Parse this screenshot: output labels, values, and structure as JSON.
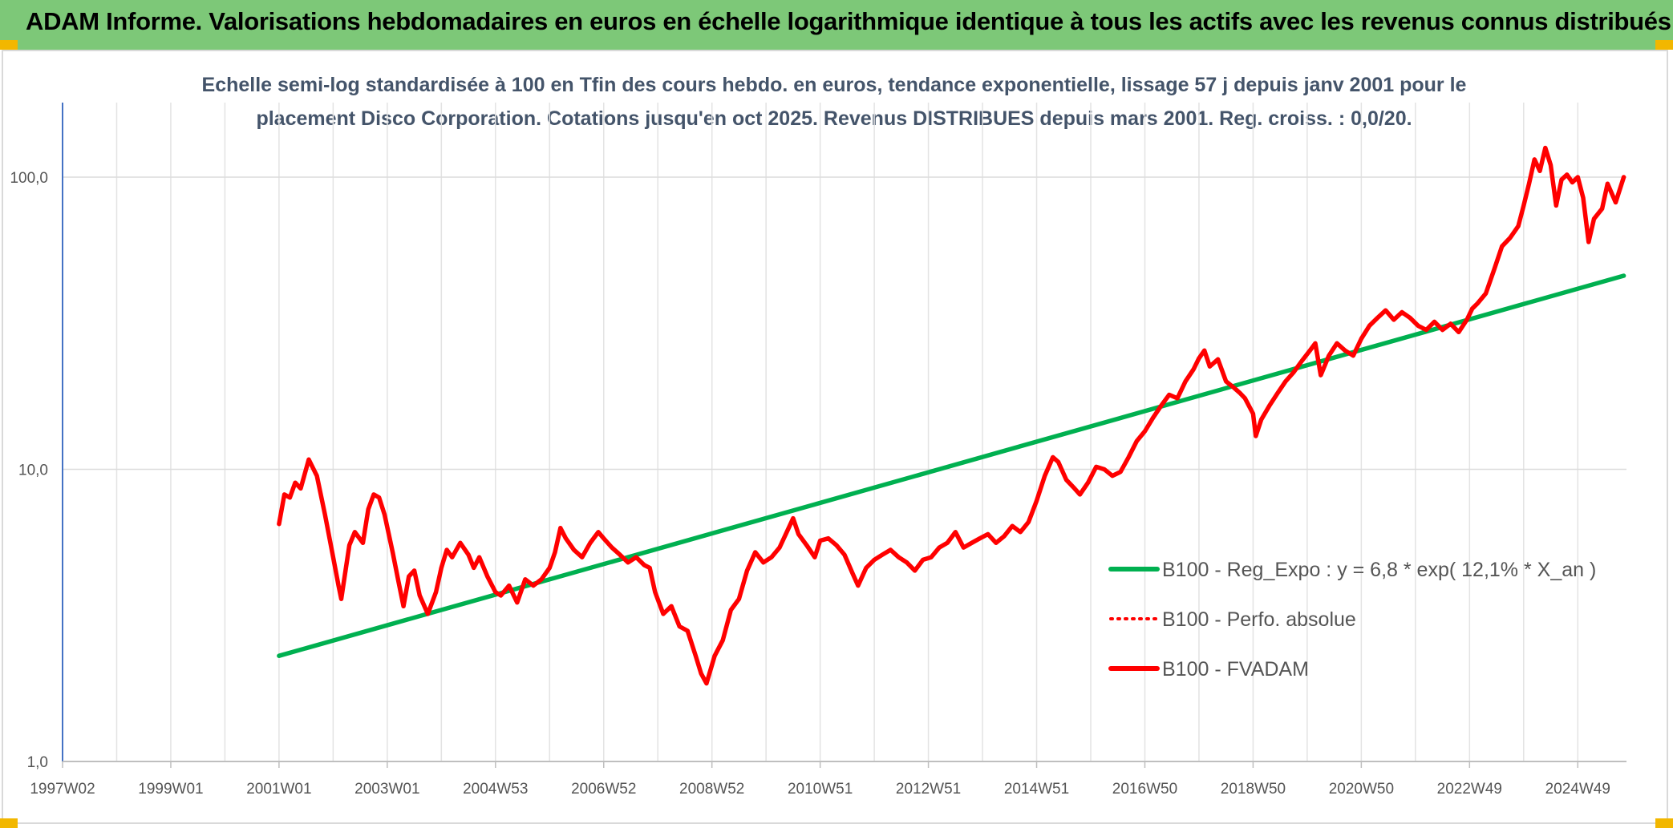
{
  "header": {
    "title": "ADAM Informe. Valorisations hebdomadaires en euros en échelle logarithmique identique à tous les actifs avec les revenus connus distribués"
  },
  "chart_data": {
    "type": "line",
    "subtitle_line1": "Echelle semi-log standardisée à 100 en Tfin des cours hebdo. en euros, tendance exponentielle, lissage 57 j depuis janv 2001 pour le",
    "subtitle_line2": "placement Disco Corporation. Cotations jusqu'en oct 2025. Revenus DISTRIBUES depuis mars 2001. Reg. croiss. : 0,0/20.",
    "y_scale": "log",
    "ylim": [
      1,
      180
    ],
    "y_ticks": [
      {
        "value": 1,
        "label": "1,0"
      },
      {
        "value": 10,
        "label": "10,0"
      },
      {
        "value": 100,
        "label": "100,0"
      }
    ],
    "xlim": [
      1997.0,
      2025.9
    ],
    "x_ticks": [
      {
        "value": 1997.0,
        "label": "1997W02"
      },
      {
        "value": 1999.0,
        "label": "1999W01"
      },
      {
        "value": 2001.0,
        "label": "2001W01"
      },
      {
        "value": 2003.0,
        "label": "2003W01"
      },
      {
        "value": 2005.0,
        "label": "2004W53"
      },
      {
        "value": 2007.0,
        "label": "2006W52"
      },
      {
        "value": 2009.0,
        "label": "2008W52"
      },
      {
        "value": 2011.0,
        "label": "2010W51"
      },
      {
        "value": 2013.0,
        "label": "2012W51"
      },
      {
        "value": 2015.0,
        "label": "2014W51"
      },
      {
        "value": 2017.0,
        "label": "2016W50"
      },
      {
        "value": 2019.0,
        "label": "2018W50"
      },
      {
        "value": 2021.0,
        "label": "2020W50"
      },
      {
        "value": 2023.0,
        "label": "2022W49"
      },
      {
        "value": 2025.0,
        "label": "2024W49"
      }
    ],
    "grid": "vertical and horizontal",
    "legend_position": "right",
    "series": [
      {
        "name": "B100 - Reg_Expo : y = 6,8 * exp( 12,1% *  X_an )",
        "color": "#00b050",
        "style": "solid",
        "points": [
          [
            2001.0,
            2.3
          ],
          [
            2025.85,
            46.0
          ]
        ]
      },
      {
        "name": "B100 - Perfo. absolue",
        "color": "#ff0000",
        "style": "dotted",
        "points": []
      },
      {
        "name": "B100 - FVADAM",
        "color": "#ff0000",
        "style": "solid",
        "points": [
          [
            2001.0,
            6.5
          ],
          [
            2001.1,
            8.2
          ],
          [
            2001.2,
            8.0
          ],
          [
            2001.3,
            9.0
          ],
          [
            2001.4,
            8.6
          ],
          [
            2001.55,
            10.8
          ],
          [
            2001.7,
            9.5
          ],
          [
            2001.85,
            7.0
          ],
          [
            2002.0,
            5.0
          ],
          [
            2002.1,
            4.0
          ],
          [
            2002.15,
            3.6
          ],
          [
            2002.3,
            5.5
          ],
          [
            2002.4,
            6.1
          ],
          [
            2002.55,
            5.6
          ],
          [
            2002.65,
            7.3
          ],
          [
            2002.75,
            8.2
          ],
          [
            2002.85,
            8.0
          ],
          [
            2002.95,
            7.0
          ],
          [
            2003.1,
            5.2
          ],
          [
            2003.2,
            4.2
          ],
          [
            2003.3,
            3.4
          ],
          [
            2003.4,
            4.3
          ],
          [
            2003.5,
            4.5
          ],
          [
            2003.6,
            3.7
          ],
          [
            2003.75,
            3.2
          ],
          [
            2003.9,
            3.8
          ],
          [
            2004.0,
            4.6
          ],
          [
            2004.1,
            5.3
          ],
          [
            2004.2,
            5.0
          ],
          [
            2004.35,
            5.6
          ],
          [
            2004.5,
            5.1
          ],
          [
            2004.6,
            4.6
          ],
          [
            2004.7,
            5.0
          ],
          [
            2004.85,
            4.3
          ],
          [
            2005.0,
            3.8
          ],
          [
            2005.1,
            3.7
          ],
          [
            2005.25,
            4.0
          ],
          [
            2005.4,
            3.5
          ],
          [
            2005.55,
            4.2
          ],
          [
            2005.7,
            4.0
          ],
          [
            2005.85,
            4.2
          ],
          [
            2006.0,
            4.6
          ],
          [
            2006.1,
            5.2
          ],
          [
            2006.2,
            6.3
          ],
          [
            2006.3,
            5.8
          ],
          [
            2006.45,
            5.3
          ],
          [
            2006.6,
            5.0
          ],
          [
            2006.75,
            5.6
          ],
          [
            2006.9,
            6.1
          ],
          [
            2007.0,
            5.8
          ],
          [
            2007.15,
            5.4
          ],
          [
            2007.3,
            5.1
          ],
          [
            2007.45,
            4.8
          ],
          [
            2007.6,
            5.0
          ],
          [
            2007.75,
            4.7
          ],
          [
            2007.85,
            4.6
          ],
          [
            2007.95,
            3.8
          ],
          [
            2008.1,
            3.2
          ],
          [
            2008.25,
            3.4
          ],
          [
            2008.4,
            2.9
          ],
          [
            2008.55,
            2.8
          ],
          [
            2008.7,
            2.3
          ],
          [
            2008.8,
            2.0
          ],
          [
            2008.9,
            1.85
          ],
          [
            2009.05,
            2.3
          ],
          [
            2009.2,
            2.6
          ],
          [
            2009.35,
            3.3
          ],
          [
            2009.5,
            3.6
          ],
          [
            2009.65,
            4.5
          ],
          [
            2009.8,
            5.2
          ],
          [
            2009.95,
            4.8
          ],
          [
            2010.1,
            5.0
          ],
          [
            2010.25,
            5.4
          ],
          [
            2010.4,
            6.2
          ],
          [
            2010.5,
            6.8
          ],
          [
            2010.6,
            6.0
          ],
          [
            2010.75,
            5.5
          ],
          [
            2010.9,
            5.0
          ],
          [
            2011.0,
            5.7
          ],
          [
            2011.15,
            5.8
          ],
          [
            2011.3,
            5.5
          ],
          [
            2011.45,
            5.1
          ],
          [
            2011.6,
            4.4
          ],
          [
            2011.7,
            4.0
          ],
          [
            2011.85,
            4.6
          ],
          [
            2012.0,
            4.9
          ],
          [
            2012.15,
            5.1
          ],
          [
            2012.3,
            5.3
          ],
          [
            2012.45,
            5.0
          ],
          [
            2012.6,
            4.8
          ],
          [
            2012.75,
            4.5
          ],
          [
            2012.9,
            4.9
          ],
          [
            2013.05,
            5.0
          ],
          [
            2013.2,
            5.4
          ],
          [
            2013.35,
            5.6
          ],
          [
            2013.5,
            6.1
          ],
          [
            2013.65,
            5.4
          ],
          [
            2013.8,
            5.6
          ],
          [
            2013.95,
            5.8
          ],
          [
            2014.1,
            6.0
          ],
          [
            2014.25,
            5.6
          ],
          [
            2014.4,
            5.9
          ],
          [
            2014.55,
            6.4
          ],
          [
            2014.7,
            6.1
          ],
          [
            2014.85,
            6.6
          ],
          [
            2015.0,
            7.8
          ],
          [
            2015.15,
            9.5
          ],
          [
            2015.3,
            11.0
          ],
          [
            2015.4,
            10.6
          ],
          [
            2015.55,
            9.2
          ],
          [
            2015.7,
            8.6
          ],
          [
            2015.8,
            8.2
          ],
          [
            2015.95,
            9.0
          ],
          [
            2016.1,
            10.2
          ],
          [
            2016.25,
            10.0
          ],
          [
            2016.4,
            9.5
          ],
          [
            2016.55,
            9.8
          ],
          [
            2016.7,
            11.0
          ],
          [
            2016.85,
            12.5
          ],
          [
            2017.0,
            13.5
          ],
          [
            2017.15,
            15.0
          ],
          [
            2017.3,
            16.5
          ],
          [
            2017.45,
            18.0
          ],
          [
            2017.6,
            17.5
          ],
          [
            2017.75,
            20.0
          ],
          [
            2017.9,
            22.0
          ],
          [
            2018.0,
            24.0
          ],
          [
            2018.1,
            25.5
          ],
          [
            2018.2,
            22.5
          ],
          [
            2018.35,
            23.8
          ],
          [
            2018.5,
            20.0
          ],
          [
            2018.65,
            19.0
          ],
          [
            2018.75,
            18.3
          ],
          [
            2018.85,
            17.5
          ],
          [
            2019.0,
            15.5
          ],
          [
            2019.05,
            13.0
          ],
          [
            2019.15,
            14.8
          ],
          [
            2019.3,
            16.5
          ],
          [
            2019.45,
            18.2
          ],
          [
            2019.6,
            20.0
          ],
          [
            2019.75,
            21.5
          ],
          [
            2019.9,
            23.5
          ],
          [
            2020.05,
            25.5
          ],
          [
            2020.15,
            27.0
          ],
          [
            2020.25,
            21.0
          ],
          [
            2020.4,
            24.5
          ],
          [
            2020.55,
            27.0
          ],
          [
            2020.7,
            25.5
          ],
          [
            2020.85,
            24.5
          ],
          [
            2021.0,
            28.0
          ],
          [
            2021.15,
            31.0
          ],
          [
            2021.3,
            33.0
          ],
          [
            2021.45,
            35.0
          ],
          [
            2021.6,
            32.5
          ],
          [
            2021.75,
            34.5
          ],
          [
            2021.9,
            33.0
          ],
          [
            2022.05,
            31.0
          ],
          [
            2022.2,
            30.0
          ],
          [
            2022.35,
            32.0
          ],
          [
            2022.5,
            30.0
          ],
          [
            2022.65,
            31.5
          ],
          [
            2022.8,
            29.5
          ],
          [
            2022.95,
            32.5
          ],
          [
            2023.05,
            35.5
          ],
          [
            2023.15,
            37.0
          ],
          [
            2023.3,
            40.0
          ],
          [
            2023.45,
            48.0
          ],
          [
            2023.6,
            58.0
          ],
          [
            2023.75,
            62.0
          ],
          [
            2023.9,
            68.0
          ],
          [
            2024.0,
            80.0
          ],
          [
            2024.1,
            95.0
          ],
          [
            2024.2,
            115.0
          ],
          [
            2024.3,
            105.0
          ],
          [
            2024.4,
            126.0
          ],
          [
            2024.5,
            110.0
          ],
          [
            2024.6,
            80.0
          ],
          [
            2024.7,
            98.0
          ],
          [
            2024.8,
            102.0
          ],
          [
            2024.9,
            96.0
          ],
          [
            2025.0,
            100.0
          ],
          [
            2025.1,
            85.0
          ],
          [
            2025.2,
            60.0
          ],
          [
            2025.3,
            72.0
          ],
          [
            2025.45,
            78.0
          ],
          [
            2025.55,
            95.0
          ],
          [
            2025.7,
            82.0
          ],
          [
            2025.85,
            100.0
          ]
        ]
      }
    ]
  }
}
